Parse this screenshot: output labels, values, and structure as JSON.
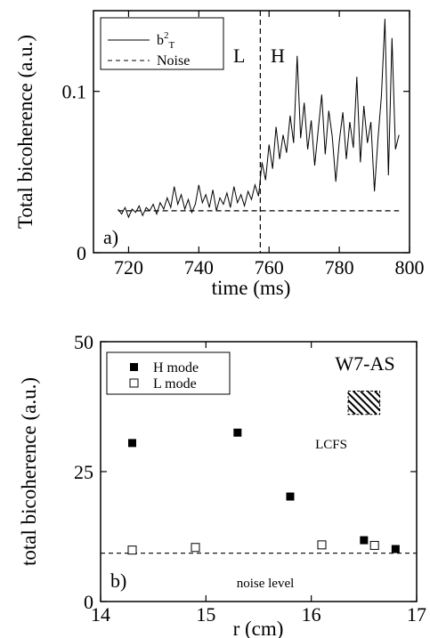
{
  "chart_data": [
    {
      "type": "line",
      "panel_label": "a)",
      "xlabel": "time (ms)",
      "ylabel": "Total bicoherence (a.u.)",
      "xlim": [
        710,
        800
      ],
      "ylim": [
        0,
        0.15
      ],
      "xticks": [
        720,
        740,
        760,
        780,
        800
      ],
      "yticks": [
        0,
        0.1
      ],
      "ytick_labels": [
        "0",
        "0.1"
      ],
      "series": [
        {
          "name": "b²T",
          "legend_base": "b",
          "legend_sup": "2",
          "legend_sub": "T",
          "style": "solid",
          "x": [
            717,
            718,
            719,
            720,
            721,
            722,
            723,
            724,
            725,
            726,
            727,
            728,
            729,
            730,
            731,
            732,
            733,
            734,
            735,
            736,
            737,
            738,
            739,
            740,
            741,
            742,
            743,
            744,
            745,
            746,
            747,
            748,
            749,
            750,
            751,
            752,
            753,
            754,
            755,
            756,
            757,
            758,
            759,
            760,
            761,
            762,
            763,
            764,
            765,
            766,
            767,
            768,
            769,
            770,
            771,
            772,
            773,
            774,
            775,
            776,
            777,
            778,
            779,
            780,
            781,
            782,
            783,
            784,
            785,
            786,
            787,
            788,
            789,
            790,
            791,
            792,
            793,
            794,
            795,
            796,
            797
          ],
          "y": [
            0.027,
            0.024,
            0.028,
            0.022,
            0.027,
            0.025,
            0.029,
            0.023,
            0.028,
            0.026,
            0.03,
            0.024,
            0.031,
            0.027,
            0.034,
            0.028,
            0.041,
            0.03,
            0.036,
            0.027,
            0.033,
            0.025,
            0.03,
            0.042,
            0.031,
            0.036,
            0.028,
            0.039,
            0.026,
            0.034,
            0.03,
            0.037,
            0.028,
            0.041,
            0.031,
            0.036,
            0.029,
            0.038,
            0.033,
            0.042,
            0.035,
            0.056,
            0.045,
            0.067,
            0.052,
            0.078,
            0.058,
            0.073,
            0.062,
            0.085,
            0.068,
            0.122,
            0.071,
            0.093,
            0.064,
            0.082,
            0.054,
            0.076,
            0.098,
            0.061,
            0.088,
            0.072,
            0.044,
            0.069,
            0.087,
            0.058,
            0.081,
            0.065,
            0.109,
            0.056,
            0.091,
            0.068,
            0.081,
            0.038,
            0.07,
            0.097,
            0.145,
            0.048,
            0.133,
            0.064,
            0.073
          ]
        },
        {
          "name": "Noise",
          "style": "dashed",
          "x": [
            717,
            797
          ],
          "y": [
            0.026,
            0.026
          ]
        }
      ],
      "vline": {
        "x": 757.5,
        "style": "dashed"
      },
      "annotations": [
        "L",
        "H"
      ],
      "legend_position": "top-left"
    },
    {
      "type": "scatter",
      "panel_label": "b)",
      "xlabel": "r (cm)",
      "ylabel": "total bicoherence (a.u.)",
      "xlim": [
        14,
        17
      ],
      "ylim": [
        0,
        50
      ],
      "xticks": [
        14,
        15,
        16,
        17
      ],
      "yticks": [
        0,
        25,
        50
      ],
      "series": [
        {
          "name": "H mode",
          "marker": "filled-square",
          "x": [
            14.3,
            15.3,
            15.8,
            16.5,
            16.8
          ],
          "y": [
            30.5,
            32.5,
            20.2,
            11.8,
            10.1
          ]
        },
        {
          "name": "L mode",
          "marker": "open-square",
          "x": [
            14.3,
            14.9,
            16.1,
            16.6
          ],
          "y": [
            9.9,
            10.4,
            10.9,
            10.8
          ]
        }
      ],
      "noise_level": 9.3,
      "noise_label": "noise level",
      "lcfs_label": "LCFS",
      "lcfs_range": {
        "x": [
          16.35,
          16.65
        ],
        "y": [
          36,
          40.5
        ]
      },
      "device_label": "W7-AS",
      "legend_position": "top-left"
    }
  ]
}
